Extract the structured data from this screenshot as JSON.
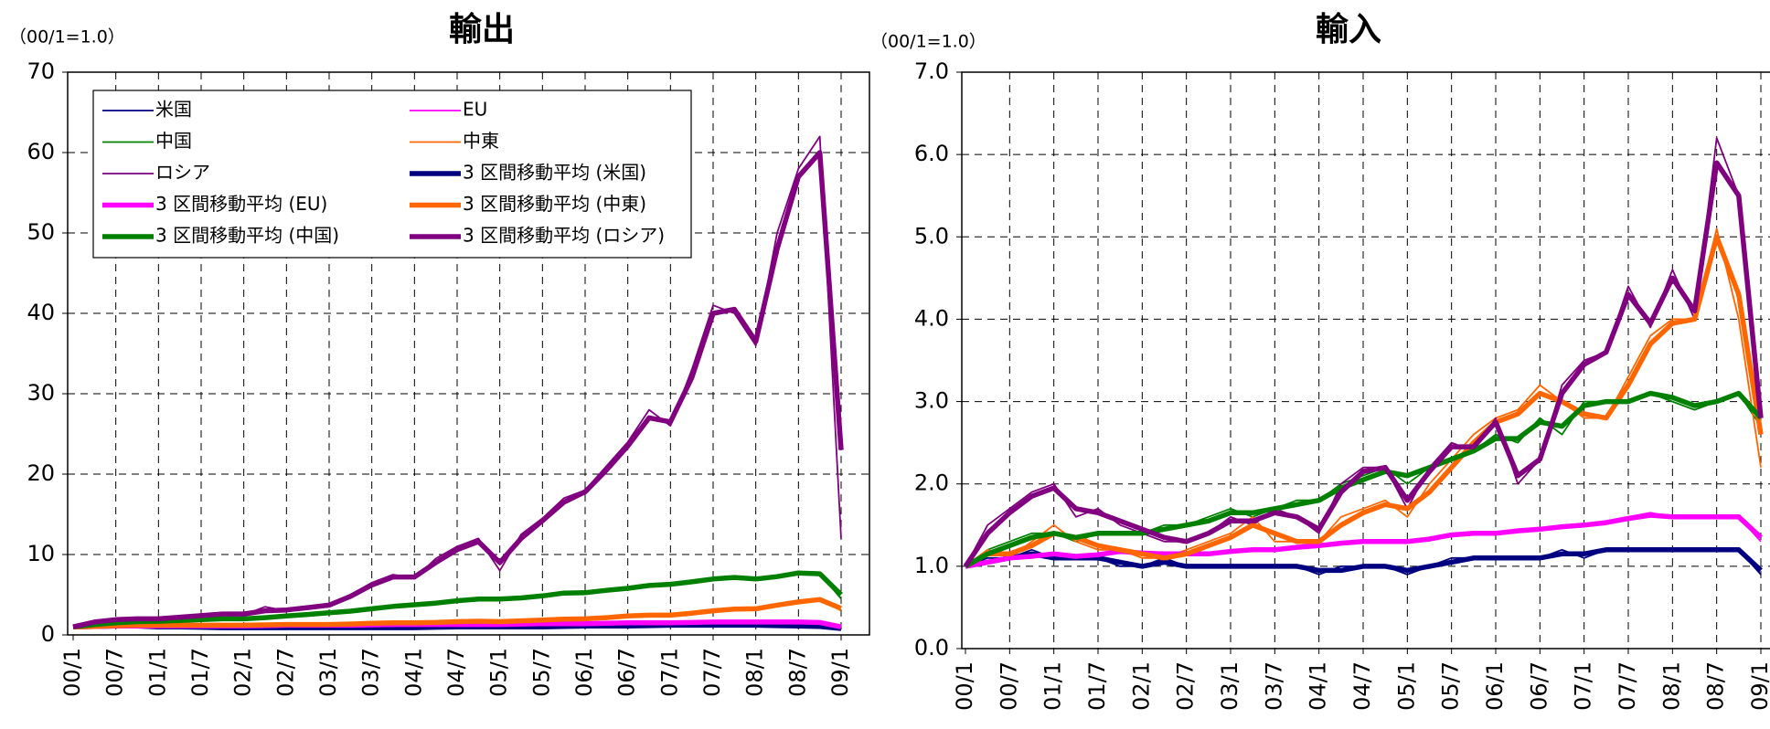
{
  "chart_data": [
    {
      "type": "line",
      "title": "輸出",
      "ylabel": "（00/1=1.0）",
      "categories": [
        "00/1",
        null,
        "00/7",
        null,
        "01/1",
        null,
        "01/7",
        null,
        "02/1",
        null,
        "02/7",
        null,
        "03/1",
        null,
        "03/7",
        null,
        "04/1",
        null,
        "04/7",
        null,
        "05/1",
        null,
        "05/7",
        null,
        "06/1",
        null,
        "06/7",
        null,
        "07/1",
        null,
        "07/7",
        null,
        "08/1",
        null,
        "08/7",
        null,
        "09/1"
      ],
      "ylim": [
        0,
        70
      ],
      "yticks": [
        0,
        10,
        20,
        30,
        40,
        50,
        60,
        70
      ],
      "grid": true,
      "legend": "upper left",
      "series": [
        {
          "name": "米国",
          "color": "#000080",
          "width": "thin",
          "values": [
            1,
            1.1,
            1.1,
            1.1,
            1.0,
            1.0,
            0.9,
            0.9,
            0.9,
            0.9,
            0.9,
            0.9,
            0.9,
            0.9,
            0.9,
            0.9,
            0.9,
            1.0,
            1.0,
            1.0,
            1.0,
            1.0,
            1.0,
            1.1,
            1.1,
            1.1,
            1.1,
            1.2,
            1.2,
            1.2,
            1.2,
            1.2,
            1.2,
            1.1,
            1.1,
            1.0,
            0.7
          ]
        },
        {
          "name": "EU",
          "color": "#ff00ff",
          "width": "thin",
          "values": [
            1,
            1.1,
            1.1,
            1.1,
            1.1,
            1.1,
            1.1,
            1.1,
            1.1,
            1.2,
            1.2,
            1.2,
            1.2,
            1.2,
            1.3,
            1.3,
            1.3,
            1.3,
            1.3,
            1.3,
            1.3,
            1.4,
            1.4,
            1.4,
            1.4,
            1.5,
            1.5,
            1.5,
            1.5,
            1.6,
            1.6,
            1.6,
            1.6,
            1.6,
            1.6,
            1.5,
            0.9
          ]
        },
        {
          "name": "中国",
          "color": "#008000",
          "width": "thin",
          "values": [
            1,
            1.4,
            1.6,
            1.7,
            1.7,
            1.8,
            1.9,
            2.0,
            2.0,
            2.2,
            2.4,
            2.6,
            2.8,
            3.0,
            3.3,
            3.6,
            3.8,
            4.0,
            4.3,
            4.5,
            4.4,
            4.6,
            4.9,
            5.3,
            5.2,
            5.6,
            5.8,
            6.2,
            6.3,
            6.6,
            7.0,
            7.2,
            6.8,
            7.3,
            7.8,
            7.6,
            4.5
          ]
        },
        {
          "name": "中東",
          "color": "#ff6600",
          "width": "thin",
          "values": [
            1,
            1.1,
            1.2,
            1.2,
            1.2,
            1.2,
            1.2,
            1.2,
            1.2,
            1.3,
            1.3,
            1.3,
            1.3,
            1.4,
            1.5,
            1.5,
            1.5,
            1.6,
            1.7,
            1.7,
            1.6,
            1.8,
            1.9,
            2.0,
            2.0,
            2.2,
            2.4,
            2.5,
            2.4,
            2.8,
            3.1,
            3.3,
            3.2,
            3.8,
            4.2,
            4.5,
            3.0
          ]
        },
        {
          "name": "ロシア",
          "color": "#800080",
          "width": "thin",
          "values": [
            1,
            1.8,
            2,
            2,
            2,
            2.2,
            2.5,
            2.8,
            2.5,
            3.5,
            3,
            3.5,
            3.8,
            5,
            6.5,
            7.5,
            7,
            9.5,
            11,
            12,
            8,
            12.5,
            14.5,
            17,
            18,
            21,
            24,
            28,
            26,
            33,
            41,
            40,
            36,
            50,
            58,
            62,
            12
          ]
        },
        {
          "name": "3 区間移動平均 (米国)",
          "color": "#000080",
          "width": "thick",
          "values": [
            1,
            1.05,
            1.1,
            1.1,
            1.0,
            1.0,
            0.95,
            0.9,
            0.9,
            0.9,
            0.9,
            0.9,
            0.9,
            0.9,
            0.9,
            0.9,
            0.9,
            0.95,
            1.0,
            1.0,
            1.0,
            1.0,
            1.0,
            1.05,
            1.1,
            1.1,
            1.1,
            1.15,
            1.2,
            1.2,
            1.2,
            1.2,
            1.2,
            1.15,
            1.1,
            1.05,
            0.8
          ]
        },
        {
          "name": "3 区間移動平均 (EU)",
          "color": "#ff00ff",
          "width": "thick",
          "values": [
            1,
            1.05,
            1.1,
            1.1,
            1.1,
            1.1,
            1.1,
            1.1,
            1.1,
            1.15,
            1.2,
            1.2,
            1.2,
            1.2,
            1.25,
            1.3,
            1.3,
            1.3,
            1.3,
            1.3,
            1.3,
            1.35,
            1.4,
            1.4,
            1.4,
            1.45,
            1.5,
            1.5,
            1.5,
            1.55,
            1.6,
            1.6,
            1.6,
            1.6,
            1.6,
            1.55,
            1.0
          ]
        },
        {
          "name": "3 区間移動平均 (中東)",
          "color": "#ff6600",
          "width": "thick",
          "values": [
            1,
            1.05,
            1.15,
            1.2,
            1.2,
            1.2,
            1.2,
            1.2,
            1.2,
            1.25,
            1.3,
            1.3,
            1.3,
            1.35,
            1.45,
            1.5,
            1.5,
            1.55,
            1.65,
            1.7,
            1.65,
            1.75,
            1.85,
            1.95,
            2.0,
            2.15,
            2.35,
            2.45,
            2.45,
            2.7,
            3.0,
            3.2,
            3.25,
            3.7,
            4.1,
            4.4,
            3.3
          ]
        },
        {
          "name": "3 区間移動平均 (中国)",
          "color": "#008000",
          "width": "thick",
          "values": [
            1,
            1.3,
            1.5,
            1.65,
            1.7,
            1.8,
            1.9,
            2.0,
            2.0,
            2.15,
            2.35,
            2.55,
            2.75,
            2.95,
            3.25,
            3.55,
            3.75,
            3.95,
            4.25,
            4.45,
            4.45,
            4.6,
            4.85,
            5.2,
            5.25,
            5.55,
            5.8,
            6.15,
            6.3,
            6.6,
            6.95,
            7.15,
            6.95,
            7.25,
            7.7,
            7.6,
            5.0
          ]
        },
        {
          "name": "3 区間移動平均 (ロシア)",
          "color": "#800080",
          "width": "thick",
          "values": [
            1,
            1.6,
            1.9,
            2.0,
            2.0,
            2.2,
            2.4,
            2.6,
            2.6,
            3.0,
            3.1,
            3.4,
            3.7,
            4.8,
            6.2,
            7.2,
            7.2,
            9.0,
            10.6,
            11.6,
            9.0,
            12.0,
            14.2,
            16.5,
            17.8,
            20.5,
            23.5,
            27,
            26.5,
            32,
            40,
            40.5,
            36.5,
            48,
            57,
            60,
            23
          ]
        }
      ]
    },
    {
      "type": "line",
      "title": "輸入",
      "ylabel": "（00/1=1.0）",
      "categories": [
        "00/1",
        null,
        "00/7",
        null,
        "01/1",
        null,
        "01/7",
        null,
        "02/1",
        null,
        "02/7",
        null,
        "03/1",
        null,
        "03/7",
        null,
        "04/1",
        null,
        "04/7",
        null,
        "05/1",
        null,
        "05/7",
        null,
        "06/1",
        null,
        "06/7",
        null,
        "07/1",
        null,
        "07/7",
        null,
        "08/1",
        null,
        "08/7",
        null,
        "09/1"
      ],
      "ylim": [
        0,
        7
      ],
      "yticks": [
        {
          "value": 0,
          "label": "0.0"
        },
        {
          "value": 1,
          "label": "1.0"
        },
        {
          "value": 2,
          "label": "2.0"
        },
        {
          "value": 3,
          "label": "3.0"
        },
        {
          "value": 4,
          "label": "4.0"
        },
        {
          "value": 5,
          "label": "5.0"
        },
        {
          "value": 6,
          "label": "6.0"
        },
        {
          "value": 7,
          "label": "7.0"
        }
      ],
      "grid": true,
      "series": [
        {
          "color": "#000080",
          "width": "thin",
          "values": [
            1,
            1.1,
            1.1,
            1.2,
            1.1,
            1.1,
            1.1,
            1.0,
            1.0,
            1.1,
            1.0,
            1.0,
            1.0,
            1.0,
            1.0,
            1.0,
            0.9,
            1.0,
            1.0,
            1.0,
            0.9,
            1.0,
            1.1,
            1.1,
            1.1,
            1.1,
            1.1,
            1.2,
            1.1,
            1.2,
            1.2,
            1.2,
            1.2,
            1.2,
            1.2,
            1.2,
            0.9
          ]
        },
        {
          "color": "#ff00ff",
          "width": "thin",
          "values": [
            1,
            1.05,
            1.1,
            1.15,
            1.15,
            1.1,
            1.15,
            1.2,
            1.15,
            1.15,
            1.15,
            1.15,
            1.2,
            1.2,
            1.2,
            1.25,
            1.25,
            1.3,
            1.3,
            1.3,
            1.3,
            1.35,
            1.4,
            1.4,
            1.4,
            1.45,
            1.45,
            1.5,
            1.5,
            1.55,
            1.6,
            1.65,
            1.6,
            1.6,
            1.6,
            1.6,
            1.3
          ]
        },
        {
          "color": "#008000",
          "width": "thin",
          "values": [
            1,
            1.2,
            1.3,
            1.4,
            1.4,
            1.3,
            1.4,
            1.4,
            1.4,
            1.5,
            1.5,
            1.6,
            1.7,
            1.6,
            1.7,
            1.8,
            1.8,
            2.0,
            2.1,
            2.2,
            2.0,
            2.2,
            2.3,
            2.4,
            2.6,
            2.5,
            2.8,
            2.6,
            3.0,
            3.0,
            3.0,
            3.1,
            3.0,
            2.9,
            3.0,
            3.1,
            2.7
          ]
        },
        {
          "color": "#ff6600",
          "width": "thin",
          "values": [
            1,
            1.2,
            1.1,
            1.3,
            1.5,
            1.3,
            1.2,
            1.2,
            1.1,
            1.1,
            1.2,
            1.3,
            1.4,
            1.6,
            1.3,
            1.3,
            1.3,
            1.6,
            1.7,
            1.8,
            1.6,
            2.0,
            2.3,
            2.6,
            2.8,
            2.9,
            3.2,
            3.0,
            2.8,
            2.8,
            3.3,
            3.8,
            4.0,
            4.0,
            5.1,
            4.0,
            2.2
          ]
        },
        {
          "color": "#800080",
          "width": "thin",
          "values": [
            1,
            1.5,
            1.7,
            1.9,
            2.0,
            1.6,
            1.7,
            1.5,
            1.4,
            1.3,
            1.3,
            1.4,
            1.6,
            1.5,
            1.7,
            1.6,
            1.4,
            2.0,
            2.2,
            2.2,
            1.7,
            2.2,
            2.5,
            2.4,
            2.8,
            2.0,
            2.3,
            3.2,
            3.5,
            3.6,
            4.4,
            3.9,
            4.6,
            4.0,
            6.2,
            5.5,
            2.7
          ]
        },
        {
          "color": "#000080",
          "width": "thick",
          "values": [
            1,
            1.05,
            1.1,
            1.15,
            1.1,
            1.1,
            1.1,
            1.05,
            1.0,
            1.05,
            1.0,
            1.0,
            1.0,
            1.0,
            1.0,
            1.0,
            0.95,
            0.95,
            1.0,
            1.0,
            0.95,
            1.0,
            1.05,
            1.1,
            1.1,
            1.1,
            1.1,
            1.15,
            1.15,
            1.2,
            1.2,
            1.2,
            1.2,
            1.2,
            1.2,
            1.2,
            0.95
          ]
        },
        {
          "color": "#ff00ff",
          "width": "thick",
          "values": [
            1,
            1.05,
            1.1,
            1.12,
            1.15,
            1.12,
            1.14,
            1.18,
            1.16,
            1.15,
            1.15,
            1.15,
            1.18,
            1.2,
            1.2,
            1.23,
            1.25,
            1.28,
            1.3,
            1.3,
            1.3,
            1.33,
            1.38,
            1.4,
            1.4,
            1.43,
            1.45,
            1.48,
            1.5,
            1.53,
            1.58,
            1.62,
            1.6,
            1.6,
            1.6,
            1.6,
            1.35
          ]
        },
        {
          "color": "#ff6600",
          "width": "thick",
          "values": [
            1,
            1.15,
            1.15,
            1.25,
            1.4,
            1.35,
            1.25,
            1.2,
            1.15,
            1.1,
            1.15,
            1.25,
            1.35,
            1.5,
            1.4,
            1.3,
            1.3,
            1.5,
            1.65,
            1.75,
            1.7,
            1.9,
            2.2,
            2.5,
            2.75,
            2.85,
            3.1,
            3.0,
            2.85,
            2.8,
            3.2,
            3.7,
            3.95,
            4.0,
            5.0,
            4.3,
            2.6
          ]
        },
        {
          "color": "#008000",
          "width": "thick",
          "values": [
            1,
            1.15,
            1.25,
            1.35,
            1.4,
            1.35,
            1.4,
            1.4,
            1.4,
            1.45,
            1.5,
            1.55,
            1.65,
            1.65,
            1.7,
            1.75,
            1.8,
            1.95,
            2.05,
            2.15,
            2.1,
            2.2,
            2.3,
            2.4,
            2.55,
            2.55,
            2.75,
            2.7,
            2.95,
            3.0,
            3.0,
            3.1,
            3.05,
            2.95,
            3.0,
            3.1,
            2.8
          ]
        },
        {
          "color": "#800080",
          "width": "thick",
          "values": [
            1,
            1.4,
            1.65,
            1.85,
            1.95,
            1.7,
            1.65,
            1.55,
            1.45,
            1.35,
            1.3,
            1.4,
            1.55,
            1.55,
            1.65,
            1.6,
            1.45,
            1.9,
            2.15,
            2.2,
            1.8,
            2.15,
            2.45,
            2.45,
            2.75,
            2.1,
            2.3,
            3.1,
            3.45,
            3.6,
            4.3,
            3.95,
            4.5,
            4.1,
            5.9,
            5.5,
            2.8
          ]
        }
      ]
    }
  ]
}
